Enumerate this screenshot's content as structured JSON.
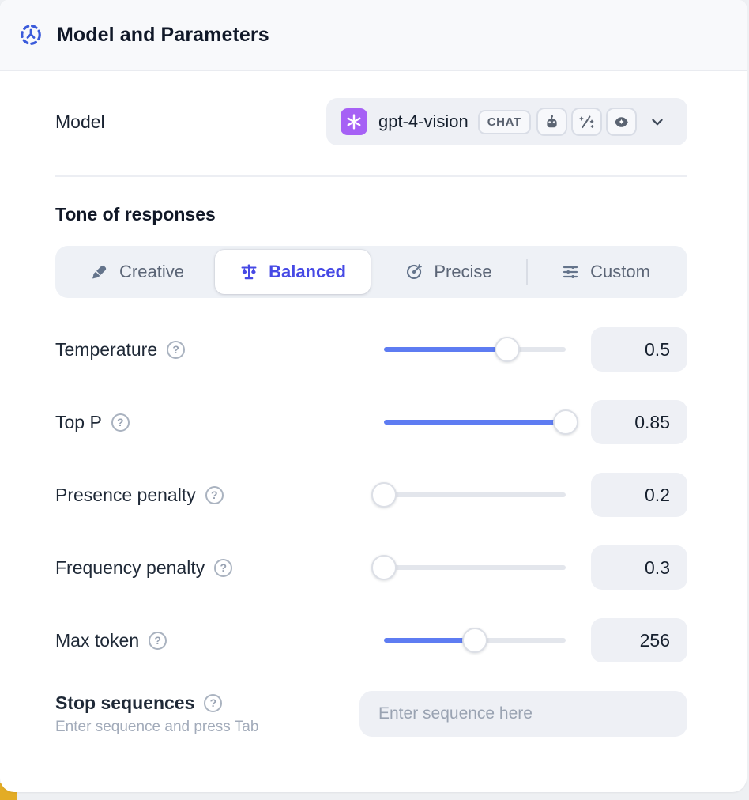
{
  "header": {
    "title": "Model and Parameters",
    "icon": "model-hub-icon",
    "accent_color": "#3b5bdb"
  },
  "model_row": {
    "label": "Model",
    "selected_model": "gpt-4-vision",
    "provider_logo": "openai-logo",
    "provider_logo_color": "#a661f5",
    "type_badge": "CHAT",
    "capability_icons": [
      "robot-icon",
      "magic-wand-icon",
      "vision-eye-icon"
    ]
  },
  "tone": {
    "heading": "Tone of responses",
    "tabs": [
      {
        "label": "Creative",
        "icon": "paintbrush-icon",
        "selected": false
      },
      {
        "label": "Balanced",
        "icon": "balance-scale-icon",
        "selected": true
      },
      {
        "label": "Precise",
        "icon": "target-icon",
        "selected": false
      },
      {
        "label": "Custom",
        "icon": "sliders-icon",
        "selected": false
      }
    ],
    "selected_color": "#4649e5"
  },
  "parameters": [
    {
      "label": "Temperature",
      "value": "0.5",
      "fill_pct": 68
    },
    {
      "label": "Top P",
      "value": "0.85",
      "fill_pct": 100
    },
    {
      "label": "Presence penalty",
      "value": "0.2",
      "fill_pct": 0
    },
    {
      "label": "Frequency penalty",
      "value": "0.3",
      "fill_pct": 0
    },
    {
      "label": "Max token",
      "value": "256",
      "fill_pct": 50
    }
  ],
  "stop_sequences": {
    "label": "Stop sequences",
    "hint": "Enter sequence and press Tab",
    "placeholder": "Enter sequence here"
  },
  "colors": {
    "slider_fill": "#5e7cf2",
    "panel_header_bg": "#f8f9fb",
    "field_bg": "#eef0f5",
    "corner_accent": "#e3ac25"
  },
  "help_glyph": "?"
}
